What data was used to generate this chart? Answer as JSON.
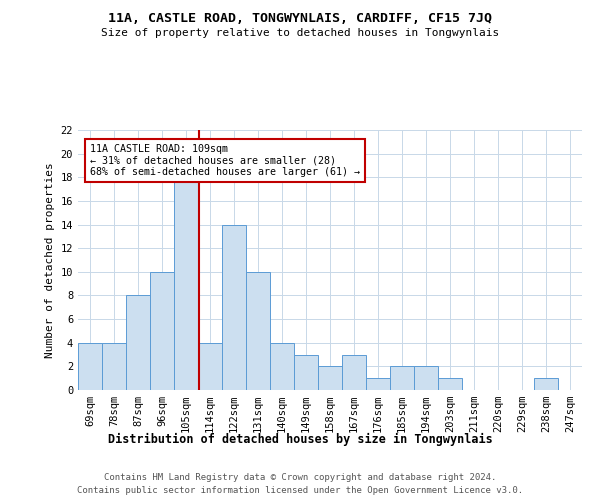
{
  "title": "11A, CASTLE ROAD, TONGWYNLAIS, CARDIFF, CF15 7JQ",
  "subtitle": "Size of property relative to detached houses in Tongwynlais",
  "xlabel": "Distribution of detached houses by size in Tongwynlais",
  "ylabel": "Number of detached properties",
  "categories": [
    "69sqm",
    "78sqm",
    "87sqm",
    "96sqm",
    "105sqm",
    "114sqm",
    "122sqm",
    "131sqm",
    "140sqm",
    "149sqm",
    "158sqm",
    "167sqm",
    "176sqm",
    "185sqm",
    "194sqm",
    "203sqm",
    "211sqm",
    "220sqm",
    "229sqm",
    "238sqm",
    "247sqm"
  ],
  "values": [
    4,
    4,
    8,
    10,
    18,
    4,
    14,
    10,
    4,
    3,
    2,
    3,
    1,
    2,
    2,
    1,
    0,
    0,
    0,
    1,
    0
  ],
  "bar_color": "#ccdff0",
  "bar_edge_color": "#5b9bd5",
  "property_line_x": 4.55,
  "property_line_color": "#c00000",
  "annotation_line1": "11A CASTLE ROAD: 109sqm",
  "annotation_line2": "← 31% of detached houses are smaller (28)",
  "annotation_line3": "68% of semi-detached houses are larger (61) →",
  "annotation_box_color": "#ffffff",
  "annotation_box_edge_color": "#c00000",
  "ylim": [
    0,
    22
  ],
  "yticks": [
    0,
    2,
    4,
    6,
    8,
    10,
    12,
    14,
    16,
    18,
    20,
    22
  ],
  "footer_line1": "Contains HM Land Registry data © Crown copyright and database right 2024.",
  "footer_line2": "Contains public sector information licensed under the Open Government Licence v3.0.",
  "background_color": "#ffffff",
  "grid_color": "#c8d8e8",
  "title_fontsize": 9.5,
  "subtitle_fontsize": 8,
  "axis_fontsize": 7.5,
  "ylabel_fontsize": 8,
  "xlabel_fontsize": 8.5
}
